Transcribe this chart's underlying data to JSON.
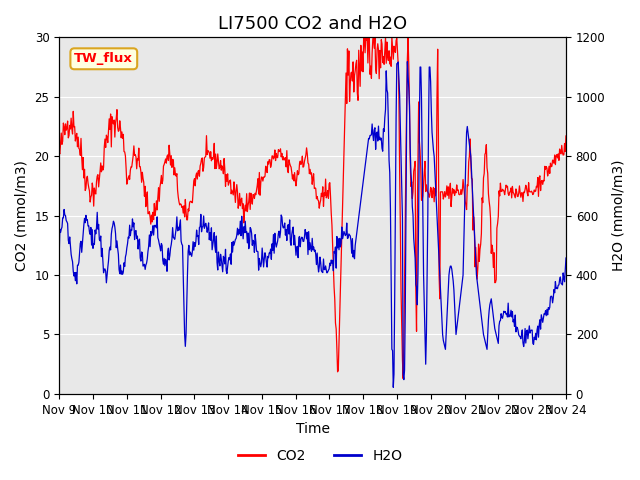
{
  "title": "LI7500 CO2 and H2O",
  "xlabel": "Time",
  "ylabel_left": "CO2 (mmol/m3)",
  "ylabel_right": "H2O (mmol/m3)",
  "co2_color": "#FF0000",
  "h2o_color": "#0000CC",
  "bg_color": "#E8E8E8",
  "ylim_left": [
    0,
    30
  ],
  "ylim_right": [
    0,
    1200
  ],
  "yticks_left": [
    0,
    5,
    10,
    15,
    20,
    25,
    30
  ],
  "yticks_right": [
    0,
    200,
    400,
    600,
    800,
    1000,
    1200
  ],
  "xtick_labels": [
    "Nov 9",
    "Nov 10",
    "Nov 11",
    "Nov 12",
    "Nov 13",
    "Nov 14",
    "Nov 15",
    "Nov 16",
    "Nov 17",
    "Nov 18",
    "Nov 19",
    "Nov 20",
    "Nov 21",
    "Nov 22",
    "Nov 23",
    "Nov 24"
  ],
  "text_box_label": "TW_flux",
  "legend_labels": [
    "CO2",
    "H2O"
  ],
  "title_fontsize": 13,
  "axis_label_fontsize": 10,
  "tick_fontsize": 8.5
}
